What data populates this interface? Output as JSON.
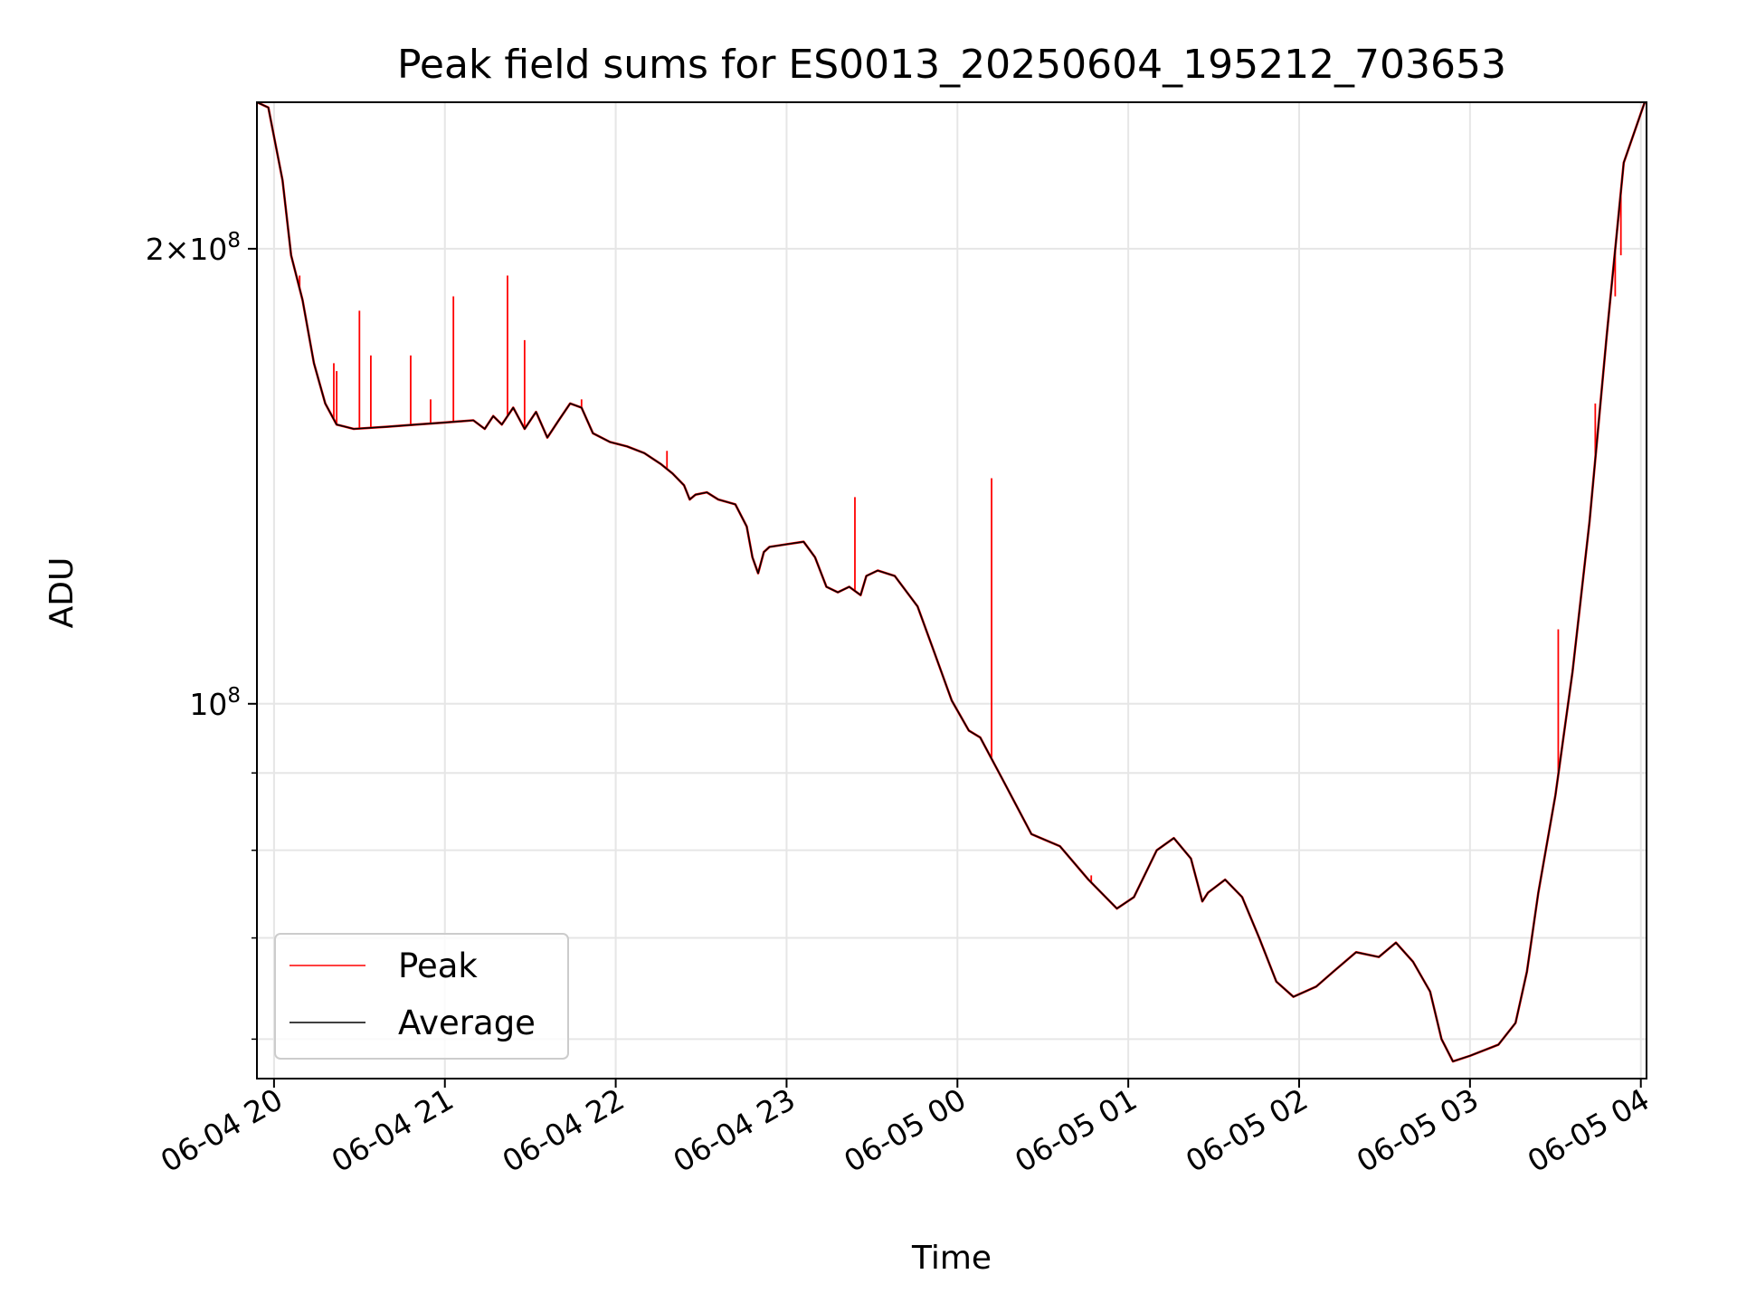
{
  "chart_data": {
    "type": "line",
    "title": "Peak field sums for ES0013_20250604_195212_703653",
    "xlabel": "Time",
    "ylabel": "ADU",
    "y_scale": "log",
    "ylim": [
      56500000,
      250000000
    ],
    "xlim": [
      "2025-06-04T19:54",
      "2025-06-05T04:02"
    ],
    "grid": true,
    "legend_position": "lower-left",
    "x_ticks": [
      {
        "value": "2025-06-04T20:00",
        "label": "06-04 20"
      },
      {
        "value": "2025-06-04T21:00",
        "label": "06-04 21"
      },
      {
        "value": "2025-06-04T22:00",
        "label": "06-04 22"
      },
      {
        "value": "2025-06-04T23:00",
        "label": "06-04 23"
      },
      {
        "value": "2025-06-05T00:00",
        "label": "06-05 00"
      },
      {
        "value": "2025-06-05T01:00",
        "label": "06-05 01"
      },
      {
        "value": "2025-06-05T02:00",
        "label": "06-05 02"
      },
      {
        "value": "2025-06-05T03:00",
        "label": "06-05 03"
      },
      {
        "value": "2025-06-05T04:00",
        "label": "06-05 04"
      }
    ],
    "y_major_ticks": [
      {
        "value": 100000000,
        "base": "10",
        "exp": "8"
      },
      {
        "value": 200000000,
        "coef": "2",
        "times": "×",
        "base": "10",
        "exp": "8"
      }
    ],
    "y_minor_ticks": [
      60000000,
      70000000,
      80000000,
      90000000
    ],
    "colors": {
      "peak": "#ff0000",
      "average": "#000000"
    },
    "series": [
      {
        "name": "Average",
        "color": "#000000",
        "points": [
          [
            "2025-06-04T19:54",
            250000000
          ],
          [
            "2025-06-04T19:58",
            248000000
          ],
          [
            "2025-06-04T20:03",
            222000000
          ],
          [
            "2025-06-04T20:06",
            198000000
          ],
          [
            "2025-06-04T20:10",
            185000000
          ],
          [
            "2025-06-04T20:14",
            168000000
          ],
          [
            "2025-06-04T20:18",
            158000000
          ],
          [
            "2025-06-04T20:22",
            153000000
          ],
          [
            "2025-06-04T20:28",
            152000000
          ],
          [
            "2025-06-04T20:40",
            152500000
          ],
          [
            "2025-06-04T20:50",
            153000000
          ],
          [
            "2025-06-04T21:00",
            153500000
          ],
          [
            "2025-06-04T21:10",
            154000000
          ],
          [
            "2025-06-04T21:14",
            152000000
          ],
          [
            "2025-06-04T21:17",
            155000000
          ],
          [
            "2025-06-04T21:20",
            153000000
          ],
          [
            "2025-06-04T21:24",
            157000000
          ],
          [
            "2025-06-04T21:28",
            152000000
          ],
          [
            "2025-06-04T21:32",
            156000000
          ],
          [
            "2025-06-04T21:36",
            150000000
          ],
          [
            "2025-06-04T21:40",
            154000000
          ],
          [
            "2025-06-04T21:44",
            158000000
          ],
          [
            "2025-06-04T21:48",
            157000000
          ],
          [
            "2025-06-04T21:52",
            151000000
          ],
          [
            "2025-06-04T21:58",
            149000000
          ],
          [
            "2025-06-04T22:04",
            148000000
          ],
          [
            "2025-06-04T22:10",
            146500000
          ],
          [
            "2025-06-04T22:16",
            144000000
          ],
          [
            "2025-06-04T22:20",
            142000000
          ],
          [
            "2025-06-04T22:24",
            139500000
          ],
          [
            "2025-06-04T22:26",
            136500000
          ],
          [
            "2025-06-04T22:28",
            137500000
          ],
          [
            "2025-06-04T22:32",
            138000000
          ],
          [
            "2025-06-04T22:36",
            136500000
          ],
          [
            "2025-06-04T22:42",
            135500000
          ],
          [
            "2025-06-04T22:46",
            131000000
          ],
          [
            "2025-06-04T22:48",
            125000000
          ],
          [
            "2025-06-04T22:50",
            122000000
          ],
          [
            "2025-06-04T22:52",
            126000000
          ],
          [
            "2025-06-04T22:54",
            127000000
          ],
          [
            "2025-06-04T23:00",
            127500000
          ],
          [
            "2025-06-04T23:06",
            128000000
          ],
          [
            "2025-06-04T23:10",
            125000000
          ],
          [
            "2025-06-04T23:14",
            119500000
          ],
          [
            "2025-06-04T23:18",
            118500000
          ],
          [
            "2025-06-04T23:22",
            119500000
          ],
          [
            "2025-06-04T23:26",
            118000000
          ],
          [
            "2025-06-04T23:28",
            121500000
          ],
          [
            "2025-06-04T23:32",
            122500000
          ],
          [
            "2025-06-04T23:38",
            121500000
          ],
          [
            "2025-06-04T23:46",
            116000000
          ],
          [
            "2025-06-04T23:52",
            108000000
          ],
          [
            "2025-06-04T23:58",
            100500000
          ],
          [
            "2025-06-05T00:04",
            96000000
          ],
          [
            "2025-06-05T00:08",
            95000000
          ],
          [
            "2025-06-05T00:16",
            89000000
          ],
          [
            "2025-06-05T00:26",
            82000000
          ],
          [
            "2025-06-05T00:36",
            80500000
          ],
          [
            "2025-06-05T00:46",
            76500000
          ],
          [
            "2025-06-05T00:56",
            73200000
          ],
          [
            "2025-06-05T01:02",
            74500000
          ],
          [
            "2025-06-05T01:10",
            80000000
          ],
          [
            "2025-06-05T01:16",
            81500000
          ],
          [
            "2025-06-05T01:22",
            79000000
          ],
          [
            "2025-06-05T01:26",
            74000000
          ],
          [
            "2025-06-05T01:28",
            75000000
          ],
          [
            "2025-06-05T01:34",
            76500000
          ],
          [
            "2025-06-05T01:40",
            74500000
          ],
          [
            "2025-06-05T01:46",
            70000000
          ],
          [
            "2025-06-05T01:52",
            65500000
          ],
          [
            "2025-06-05T01:58",
            64000000
          ],
          [
            "2025-06-05T02:06",
            65000000
          ],
          [
            "2025-06-05T02:12",
            66500000
          ],
          [
            "2025-06-05T02:20",
            68500000
          ],
          [
            "2025-06-05T02:28",
            68000000
          ],
          [
            "2025-06-05T02:34",
            69500000
          ],
          [
            "2025-06-05T02:40",
            67500000
          ],
          [
            "2025-06-05T02:46",
            64500000
          ],
          [
            "2025-06-05T02:50",
            60000000
          ],
          [
            "2025-06-05T02:54",
            58000000
          ],
          [
            "2025-06-05T03:00",
            58500000
          ],
          [
            "2025-06-05T03:10",
            59500000
          ],
          [
            "2025-06-05T03:16",
            61500000
          ],
          [
            "2025-06-05T03:20",
            66500000
          ],
          [
            "2025-06-05T03:24",
            75000000
          ],
          [
            "2025-06-05T03:30",
            87000000
          ],
          [
            "2025-06-05T03:36",
            105000000
          ],
          [
            "2025-06-05T03:42",
            132000000
          ],
          [
            "2025-06-05T03:48",
            175000000
          ],
          [
            "2025-06-05T03:54",
            228000000
          ],
          [
            "2025-06-05T04:02",
            252000000
          ]
        ]
      },
      {
        "name": "Peak",
        "color": "#ff0000",
        "spikes": [
          [
            "2025-06-04T20:09",
            192000000
          ],
          [
            "2025-06-04T20:21",
            168000000
          ],
          [
            "2025-06-04T20:22",
            166000000
          ],
          [
            "2025-06-04T20:30",
            182000000
          ],
          [
            "2025-06-04T20:34",
            170000000
          ],
          [
            "2025-06-04T20:48",
            170000000
          ],
          [
            "2025-06-04T20:55",
            159000000
          ],
          [
            "2025-06-04T21:03",
            186000000
          ],
          [
            "2025-06-04T21:22",
            192000000
          ],
          [
            "2025-06-04T21:28",
            174000000
          ],
          [
            "2025-06-04T21:48",
            159000000
          ],
          [
            "2025-06-04T22:18",
            147000000
          ],
          [
            "2025-06-04T23:24",
            137000000
          ],
          [
            "2025-06-05T00:12",
            141000000
          ],
          [
            "2025-06-05T00:47",
            77000000
          ],
          [
            "2025-06-05T03:31",
            112000000
          ],
          [
            "2025-06-05T03:44",
            158000000
          ],
          [
            "2025-06-05T03:51",
            186000000
          ],
          [
            "2025-06-05T03:53",
            198000000
          ]
        ]
      }
    ]
  }
}
